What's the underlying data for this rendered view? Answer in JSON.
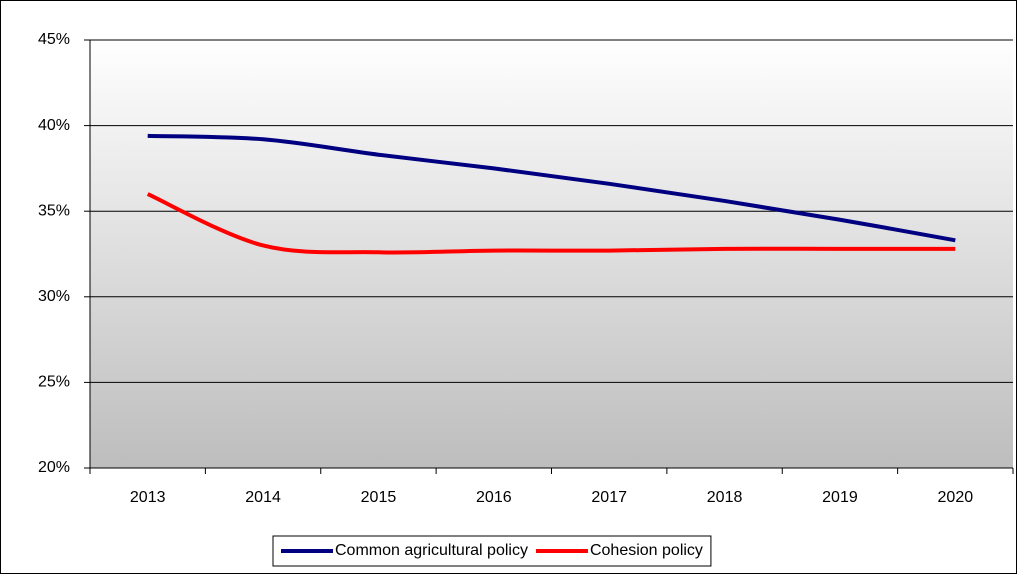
{
  "chart_data": {
    "type": "line",
    "categories": [
      "2013",
      "2014",
      "2015",
      "2016",
      "2017",
      "2018",
      "2019",
      "2020"
    ],
    "series": [
      {
        "name": "Common agricultural policy",
        "color": "#000080",
        "values": [
          39.4,
          39.2,
          38.3,
          37.5,
          36.6,
          35.6,
          34.5,
          33.3
        ]
      },
      {
        "name": "Cohesion policy",
        "color": "#ff0000",
        "values": [
          36.0,
          33.0,
          32.6,
          32.7,
          32.7,
          32.8,
          32.8,
          32.8
        ]
      }
    ],
    "ylim": [
      20,
      45
    ],
    "yticks": [
      {
        "value": 20,
        "label": "20%"
      },
      {
        "value": 25,
        "label": "25%"
      },
      {
        "value": 30,
        "label": "30%"
      },
      {
        "value": 35,
        "label": "35%"
      },
      {
        "value": 40,
        "label": "40%"
      },
      {
        "value": 45,
        "label": "45%"
      }
    ],
    "grid": true,
    "legend": "bottom"
  }
}
